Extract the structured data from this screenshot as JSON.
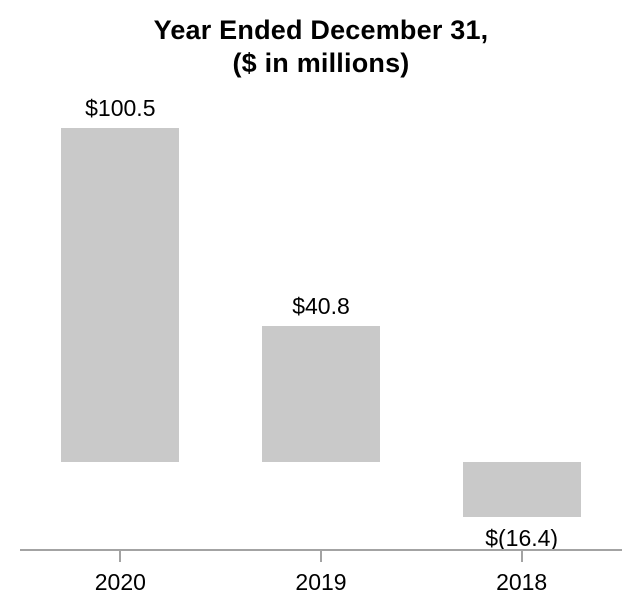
{
  "chart_data": {
    "type": "bar",
    "title": "Year Ended December 31,",
    "subtitle": "($ in millions)",
    "categories": [
      "2020",
      "2019",
      "2018"
    ],
    "values": [
      100.5,
      40.8,
      -16.4
    ],
    "value_labels": [
      "$100.5",
      "$40.8",
      "$(16.4)"
    ],
    "series_name": "",
    "xlabel": "",
    "ylabel": "",
    "ylim": [
      -20,
      110
    ],
    "grid": false,
    "legend": false,
    "bar_color": "#c9c9c9",
    "axis_color": "#a3a3a3",
    "text_color": "#000000",
    "background_color": "#ffffff"
  }
}
